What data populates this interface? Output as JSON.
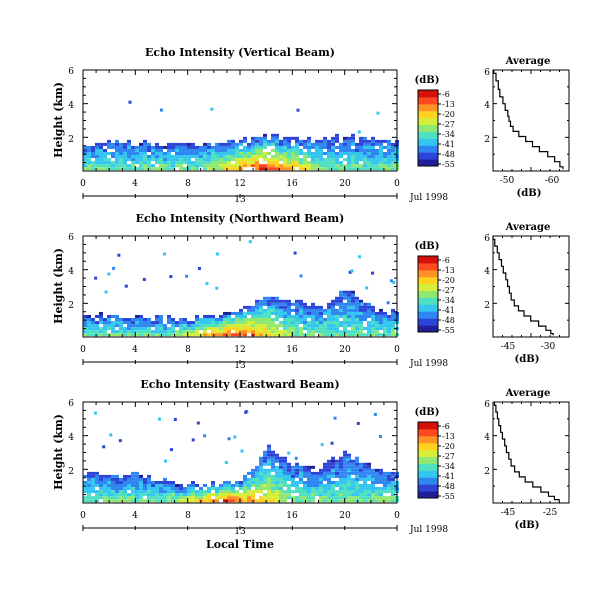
{
  "figure": {
    "date_label": "Jul 1998",
    "local_time_label": "Local Time",
    "day_label": "13"
  },
  "colorbar": {
    "unit": "(dB)",
    "ticks": [
      "-6",
      "-13",
      "-20",
      "-27",
      "-34",
      "-41",
      "-48",
      "-55"
    ],
    "colors": [
      "#1f1f9a",
      "#2c44d8",
      "#2f86f0",
      "#33c6f0",
      "#4ee0c0",
      "#8fe872",
      "#d4ee3a",
      "#ffd21e",
      "#ff9224",
      "#ff4a20",
      "#d8100c"
    ]
  },
  "chart_data": [
    {
      "type": "heatmap",
      "title": "Echo Intensity (Vertical Beam)",
      "ylabel": "Height (km)",
      "ylim": [
        0,
        6
      ],
      "y_ticks": [
        "2",
        "4",
        "6"
      ],
      "xlim": [
        0,
        24
      ],
      "x_ticks": [
        "0",
        "4",
        "8",
        "12",
        "16",
        "20",
        "0"
      ],
      "x_unit": "hour (local time)",
      "colorscale_db": [
        -55,
        -6
      ],
      "echo_profile": {
        "hours": [
          0,
          4,
          8,
          12,
          14,
          16,
          20,
          24
        ],
        "top_km": [
          1.6,
          1.6,
          1.5,
          1.7,
          2.0,
          1.8,
          1.9,
          1.7
        ],
        "peak_hour": 13.5
      }
    },
    {
      "type": "line",
      "title": "Average",
      "xlabel": "(dB)",
      "x_ticks": [
        "-50",
        "-60"
      ],
      "xlim": [
        -45,
        -65
      ],
      "ylim": [
        0,
        6
      ],
      "y_ticks": [
        "2",
        "4",
        "6"
      ],
      "x": [
        -45.2,
        -45.8,
        -46.4,
        -46.8,
        -47.6,
        -48.2,
        -48.9,
        -49.2,
        -49.6,
        -50.3,
        -51.8,
        -53.6,
        -55.4,
        -57.2,
        -59.4,
        -61.2,
        -62.6,
        -63.4
      ],
      "y": [
        6.0,
        5.6,
        5.1,
        4.6,
        4.2,
        3.8,
        3.4,
        3.1,
        2.8,
        2.5,
        2.2,
        1.9,
        1.6,
        1.3,
        1.0,
        0.7,
        0.4,
        0.1
      ]
    },
    {
      "type": "heatmap",
      "title": "Echo Intensity (Northward Beam)",
      "ylabel": "Height (km)",
      "ylim": [
        0,
        6
      ],
      "y_ticks": [
        "2",
        "4",
        "6"
      ],
      "xlim": [
        0,
        24
      ],
      "x_ticks": [
        "0",
        "4",
        "8",
        "12",
        "16",
        "20",
        "0"
      ],
      "x_unit": "hour (local time)",
      "colorscale_db": [
        -55,
        -6
      ],
      "echo_profile": {
        "hours": [
          0,
          4,
          8,
          10,
          12,
          14,
          16,
          18,
          20,
          22,
          24
        ],
        "top_km": [
          1.2,
          1.1,
          1.0,
          1.2,
          1.6,
          2.4,
          2.0,
          1.8,
          2.8,
          1.6,
          1.3
        ],
        "peak_hour": 11.5
      }
    },
    {
      "type": "line",
      "title": "Average",
      "xlabel": "(dB)",
      "x_ticks": [
        "-45",
        "-30"
      ],
      "xlim": [
        -50,
        -25
      ],
      "ylim": [
        0,
        6
      ],
      "y_ticks": [
        "2",
        "4",
        "6"
      ],
      "x": [
        -50.0,
        -49.4,
        -48.6,
        -48.0,
        -47.2,
        -46.6,
        -45.8,
        -45.2,
        -44.6,
        -44.0,
        -43.0,
        -41.6,
        -39.8,
        -37.6,
        -35.0,
        -32.6,
        -31.0,
        -30.2
      ],
      "y": [
        6.0,
        5.6,
        5.2,
        4.8,
        4.4,
        4.0,
        3.6,
        3.2,
        2.8,
        2.4,
        2.0,
        1.7,
        1.4,
        1.1,
        0.8,
        0.5,
        0.3,
        0.1
      ]
    },
    {
      "type": "heatmap",
      "title": "Echo Intensity (Eastward Beam)",
      "ylabel": "Height (km)",
      "ylim": [
        0,
        6
      ],
      "y_ticks": [
        "2",
        "4",
        "6"
      ],
      "xlim": [
        0,
        24
      ],
      "x_ticks": [
        "0",
        "4",
        "8",
        "12",
        "16",
        "20",
        "0"
      ],
      "x_unit": "hour (local time)",
      "colorscale_db": [
        -55,
        -6
      ],
      "echo_profile": {
        "hours": [
          0,
          4,
          8,
          10,
          12,
          14,
          16,
          18,
          20,
          22,
          24
        ],
        "top_km": [
          1.8,
          1.6,
          1.0,
          1.0,
          1.3,
          3.3,
          2.2,
          1.9,
          3.0,
          2.0,
          1.8
        ],
        "peak_hour": 11.0
      }
    },
    {
      "type": "line",
      "title": "Average",
      "xlabel": "(dB)",
      "x_ticks": [
        "-45",
        "-25"
      ],
      "xlim": [
        -48,
        -22
      ],
      "ylim": [
        0,
        6
      ],
      "y_ticks": [
        "2",
        "4",
        "6"
      ],
      "x": [
        -47.5,
        -47.0,
        -46.5,
        -46.0,
        -45.4,
        -44.8,
        -44.0,
        -43.4,
        -42.6,
        -41.8,
        -40.6,
        -39.0,
        -37.0,
        -34.4,
        -31.6,
        -29.0,
        -27.0,
        -25.4
      ],
      "y": [
        6.0,
        5.6,
        5.2,
        4.8,
        4.4,
        4.0,
        3.6,
        3.2,
        2.8,
        2.4,
        2.0,
        1.7,
        1.4,
        1.1,
        0.8,
        0.5,
        0.3,
        0.1
      ]
    }
  ]
}
